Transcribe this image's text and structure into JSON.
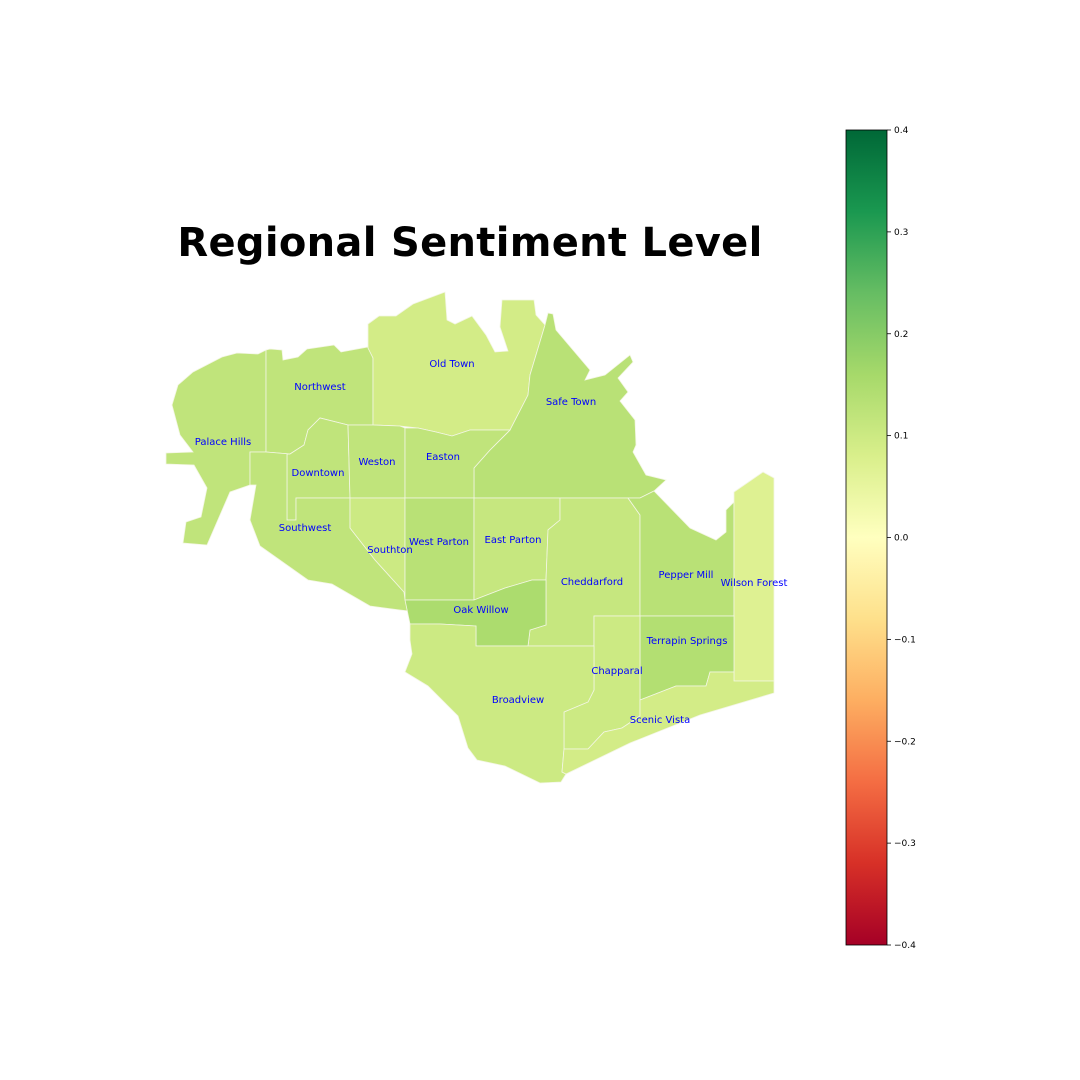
{
  "map": {
    "title": "Regional Sentiment Level"
  },
  "colorbar": {
    "colormap": "RdYlGn",
    "min": -0.4,
    "max": 0.4,
    "ticks": [
      {
        "value": 0.4,
        "label": "0.4"
      },
      {
        "value": 0.3,
        "label": "0.3"
      },
      {
        "value": 0.2,
        "label": "0.2"
      },
      {
        "value": 0.1,
        "label": "0.1"
      },
      {
        "value": 0.0,
        "label": "0.0"
      },
      {
        "value": -0.1,
        "label": "−0.1"
      },
      {
        "value": -0.2,
        "label": "−0.2"
      },
      {
        "value": -0.3,
        "label": "−0.3"
      },
      {
        "value": -0.4,
        "label": "−0.4"
      }
    ]
  },
  "regions": [
    {
      "id": "palace-hills",
      "name": "Palace Hills",
      "value": 0.12
    },
    {
      "id": "northwest",
      "name": "Northwest",
      "value": 0.12
    },
    {
      "id": "old-town",
      "name": "Old Town",
      "value": 0.09
    },
    {
      "id": "safe-town",
      "name": "Safe Town",
      "value": 0.13
    },
    {
      "id": "downtown",
      "name": "Downtown",
      "value": 0.12
    },
    {
      "id": "weston",
      "name": "Weston",
      "value": 0.12
    },
    {
      "id": "easton",
      "name": "Easton",
      "value": 0.12
    },
    {
      "id": "southwest",
      "name": "Southwest",
      "value": 0.12
    },
    {
      "id": "southton",
      "name": "Southton",
      "value": 0.1
    },
    {
      "id": "west-parton",
      "name": "West Parton",
      "value": 0.13
    },
    {
      "id": "east-parton",
      "name": "East Parton",
      "value": 0.11
    },
    {
      "id": "cheddarford",
      "name": "Cheddarford",
      "value": 0.11
    },
    {
      "id": "pepper-mill",
      "name": "Pepper Mill",
      "value": 0.13
    },
    {
      "id": "wilson-forest",
      "name": "Wilson Forest",
      "value": 0.07
    },
    {
      "id": "oak-willow",
      "name": "Oak Willow",
      "value": 0.15
    },
    {
      "id": "terrapin-springs",
      "name": "Terrapin Springs",
      "value": 0.14
    },
    {
      "id": "chapparal",
      "name": "Chapparal",
      "value": 0.1
    },
    {
      "id": "broadview",
      "name": "Broadview",
      "value": 0.1
    },
    {
      "id": "scenic-vista",
      "name": "Scenic Vista",
      "value": 0.09
    }
  ]
}
